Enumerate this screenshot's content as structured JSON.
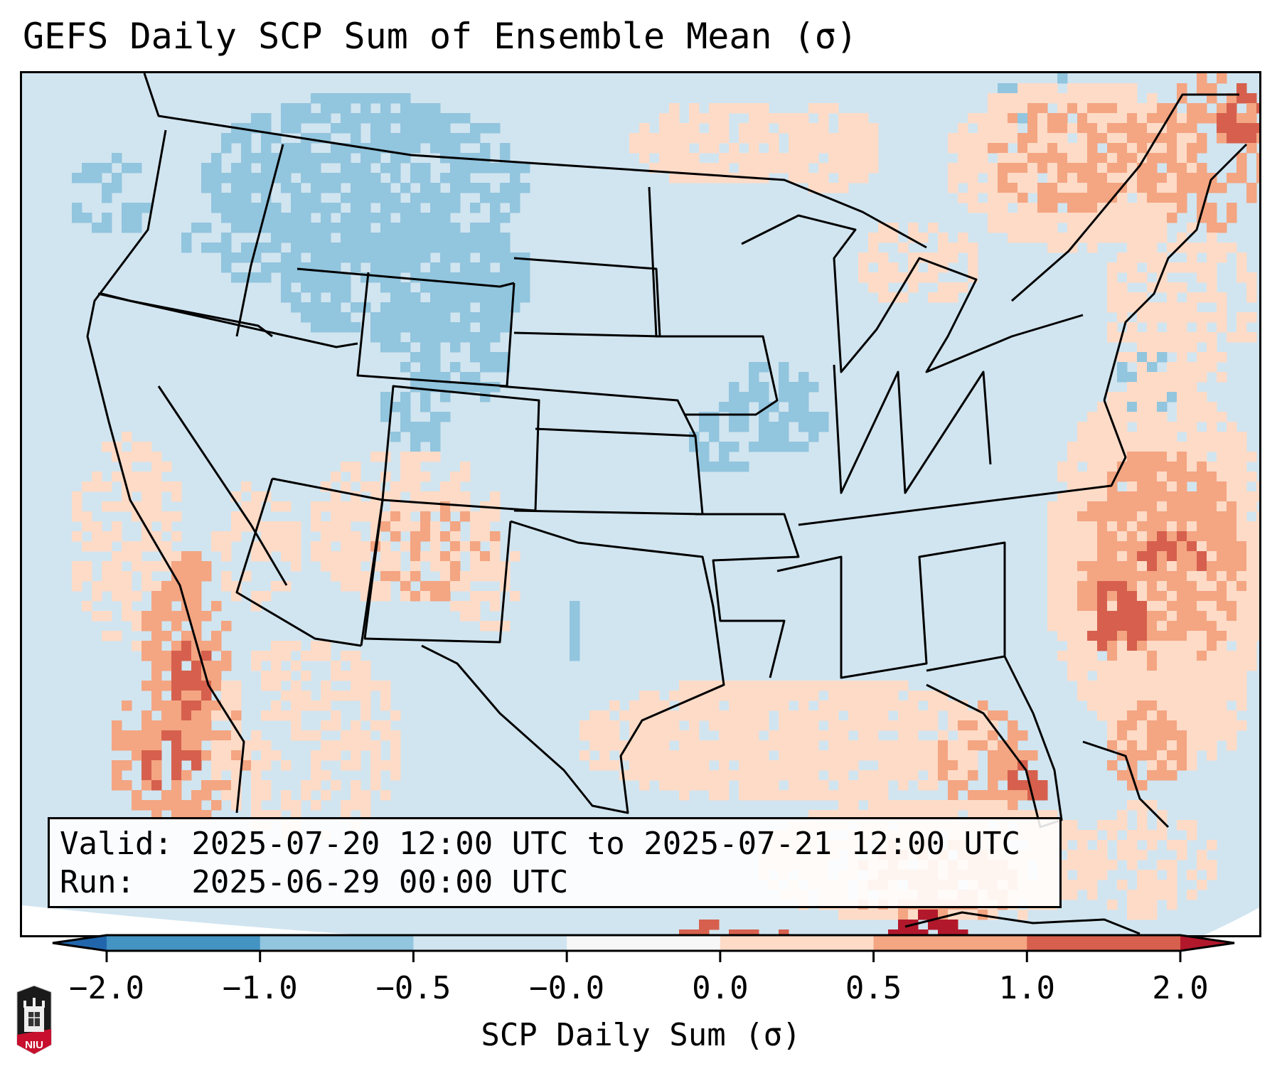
{
  "title": "GEFS Daily SCP Sum of Ensemble Mean (σ)",
  "info_box": {
    "valid_line": "Valid: 2025-07-20 12:00 UTC to 2025-07-21 12:00 UTC",
    "run_line": "Run:   2025-06-29 00:00 UTC"
  },
  "colorbar": {
    "label": "SCP Daily Sum (σ)",
    "ticks": [
      "−2.0",
      "−1.0",
      "−0.5",
      "−0.0",
      "0.0",
      "0.5",
      "1.0",
      "2.0"
    ],
    "bins": [
      {
        "from": "-2.0",
        "to": "-1.0",
        "color": "#4393c3"
      },
      {
        "from": "-1.0",
        "to": "-0.5",
        "color": "#92c5de"
      },
      {
        "from": "-0.5",
        "to": "-0.0",
        "color": "#d1e5f0"
      },
      {
        "from": "-0.0",
        "to": "0.0",
        "color": "#f7f7f7"
      },
      {
        "from": "0.0",
        "to": "0.5",
        "color": "#fddbc7"
      },
      {
        "from": "0.5",
        "to": "1.0",
        "color": "#f4a582"
      },
      {
        "from": "1.0",
        "to": "2.0",
        "color": "#d6604d"
      }
    ],
    "under_color": "#2166ac",
    "over_color": "#b2182b",
    "extend": "both"
  },
  "map": {
    "projection": "Lambert Conformal (CONUS)",
    "variable": "SCP Daily Sum anomaly",
    "units": "σ",
    "background_color": "#d1e5f0",
    "regions_of_note": [
      {
        "name": "Northern Rockies / Idaho-Montana-Wyoming",
        "category": "-1.0 to -0.5"
      },
      {
        "name": "Iowa / Illinois",
        "category": "-1.0 to -0.5"
      },
      {
        "name": "Southern Canada / Quebec",
        "category": "0.5 to 1.0"
      },
      {
        "name": "Western Atlantic off Carolinas",
        "category": "1.0 to 2.0"
      },
      {
        "name": "Baja California / Gulf of California",
        "category": "1.0 to 2.0"
      },
      {
        "name": "Western Caribbean south of Cuba",
        "category": "> 2.0"
      },
      {
        "name": "Southwest (AZ/NM)",
        "category": "0.0 to 1.0"
      },
      {
        "name": "Gulf of Mexico",
        "category": "0.0 to 0.5"
      }
    ]
  },
  "logo": {
    "text": "NIU",
    "primary_color": "#c8102e",
    "secondary_color": "#1a1a1a"
  }
}
